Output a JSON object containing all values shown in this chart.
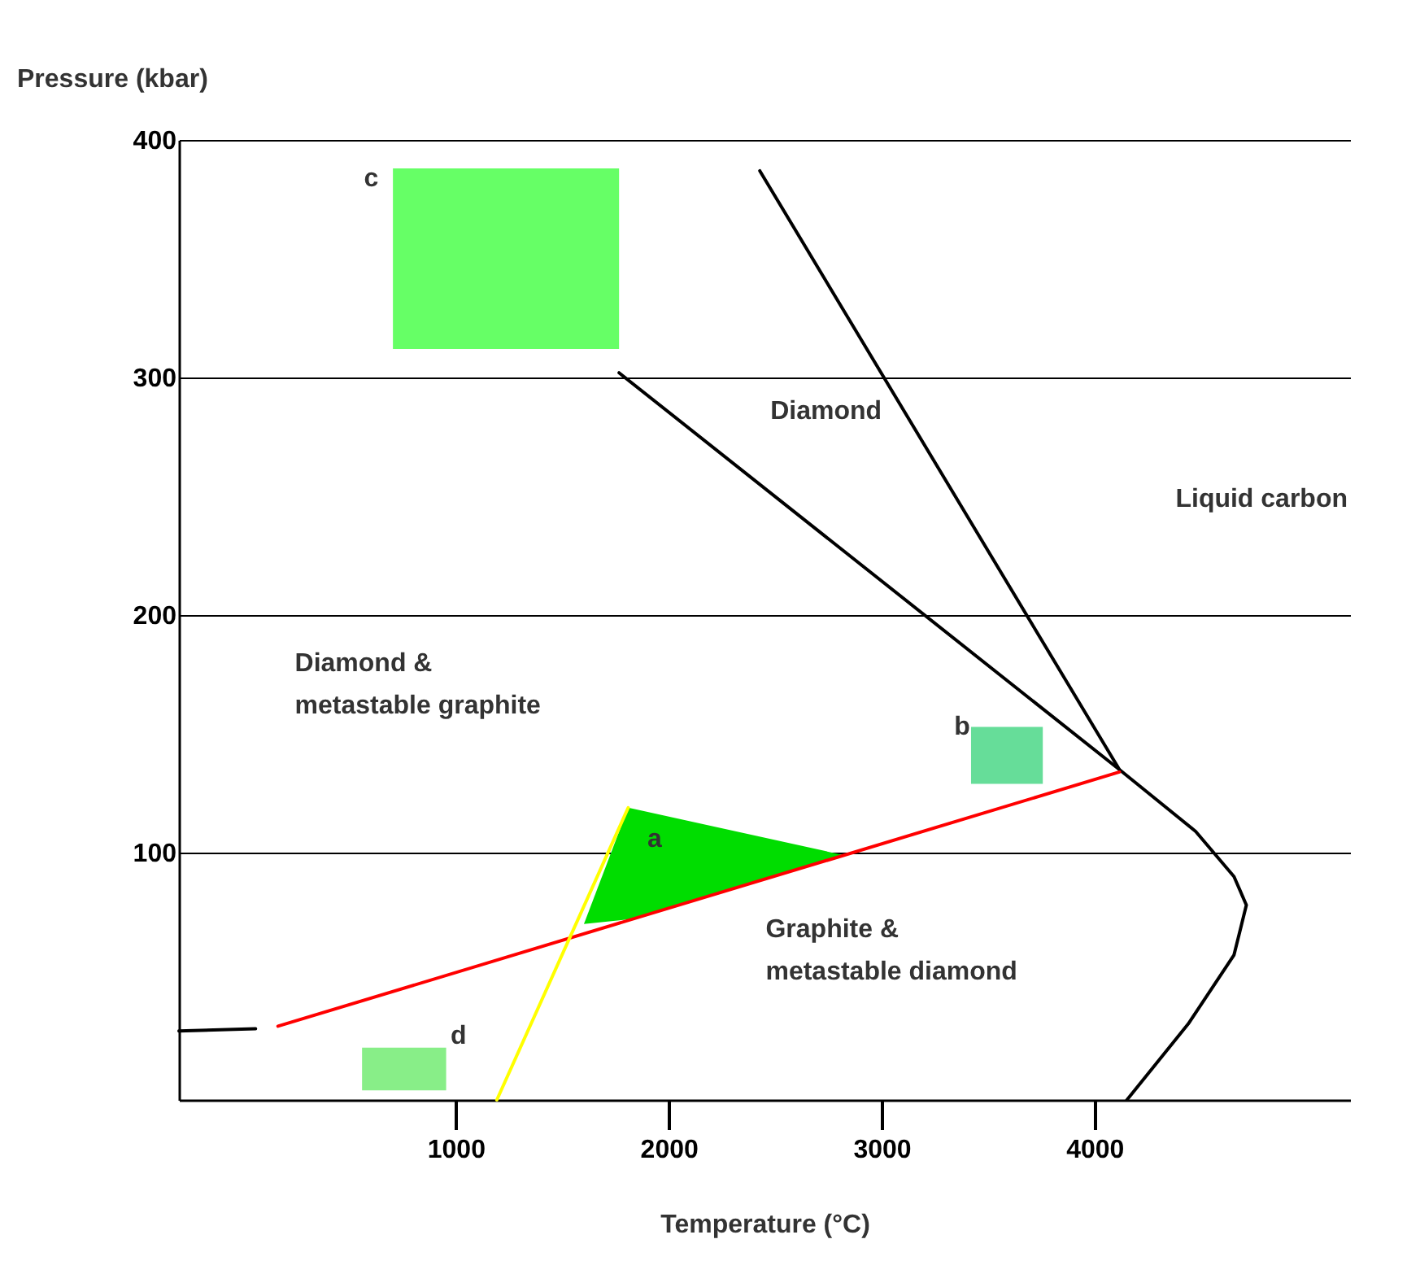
{
  "chart_data": {
    "type": "line",
    "xlabel": "Temperature (°C)",
    "ylabel": "Pressure (kbar)",
    "xlim": [
      -300,
      5200
    ],
    "ylim": [
      -4,
      400
    ],
    "xticks": [
      1000,
      2000,
      3000,
      4000
    ],
    "yticks": [
      100,
      200,
      300,
      400
    ],
    "grid": "y",
    "series": [
      {
        "type": "line",
        "color": "#66ff66",
        "x": [
          705,
          1767
        ],
        "values": [
          null,
          null
        ],
        "lower": [
          312,
          312
        ],
        "upper": [
          388,
          388
        ]
      },
      {
        "type": "line",
        "color": "#66dd99",
        "x": [
          3420,
          3757
        ],
        "values": [
          null,
          null
        ],
        "lower": [
          129,
          129
        ],
        "upper": [
          153,
          153
        ]
      },
      {
        "type": "line",
        "color": "#88ee88",
        "x": [
          560,
          955
        ],
        "values": [
          null,
          null
        ],
        "lower": [
          0,
          0
        ],
        "upper": [
          18,
          18
        ]
      },
      {
        "type": "line",
        "color": "#00dd00",
        "x": [
          1602,
          1810,
          2823
        ],
        "values": [
          null,
          null,
          null
        ],
        "lower": [
          70,
          72,
          99
        ],
        "upper": [
          70,
          119,
          99
        ]
      },
      {
        "type": "line",
        "color": "#000000",
        "x": [
          1767,
          4117,
          4475,
          4655,
          4713,
          4655,
          4440,
          4152
        ],
        "values": [
          302,
          135,
          109,
          90,
          78,
          57,
          28,
          -4
        ]
      },
      {
        "type": "line",
        "color": "#000000",
        "x": [
          2428,
          4117
        ],
        "values": [
          387,
          135
        ]
      },
      {
        "type": "line",
        "color": "#000000",
        "x": [
          -300,
          60
        ],
        "values": [
          25,
          26
        ]
      },
      {
        "type": "line",
        "color": "#ff0000",
        "x": [
          165,
          4117
        ],
        "values": [
          27,
          134
        ]
      },
      {
        "type": "line",
        "color": "#ffff00",
        "x": [
          1193,
          1810
        ],
        "values": [
          -4,
          119
        ]
      }
    ],
    "annotations": [
      "Diamond",
      "Liquid carbon",
      "Diamond &",
      "metastable graphite",
      "Graphite &",
      "metastable diamond",
      "a",
      "b",
      "c",
      "d"
    ]
  }
}
